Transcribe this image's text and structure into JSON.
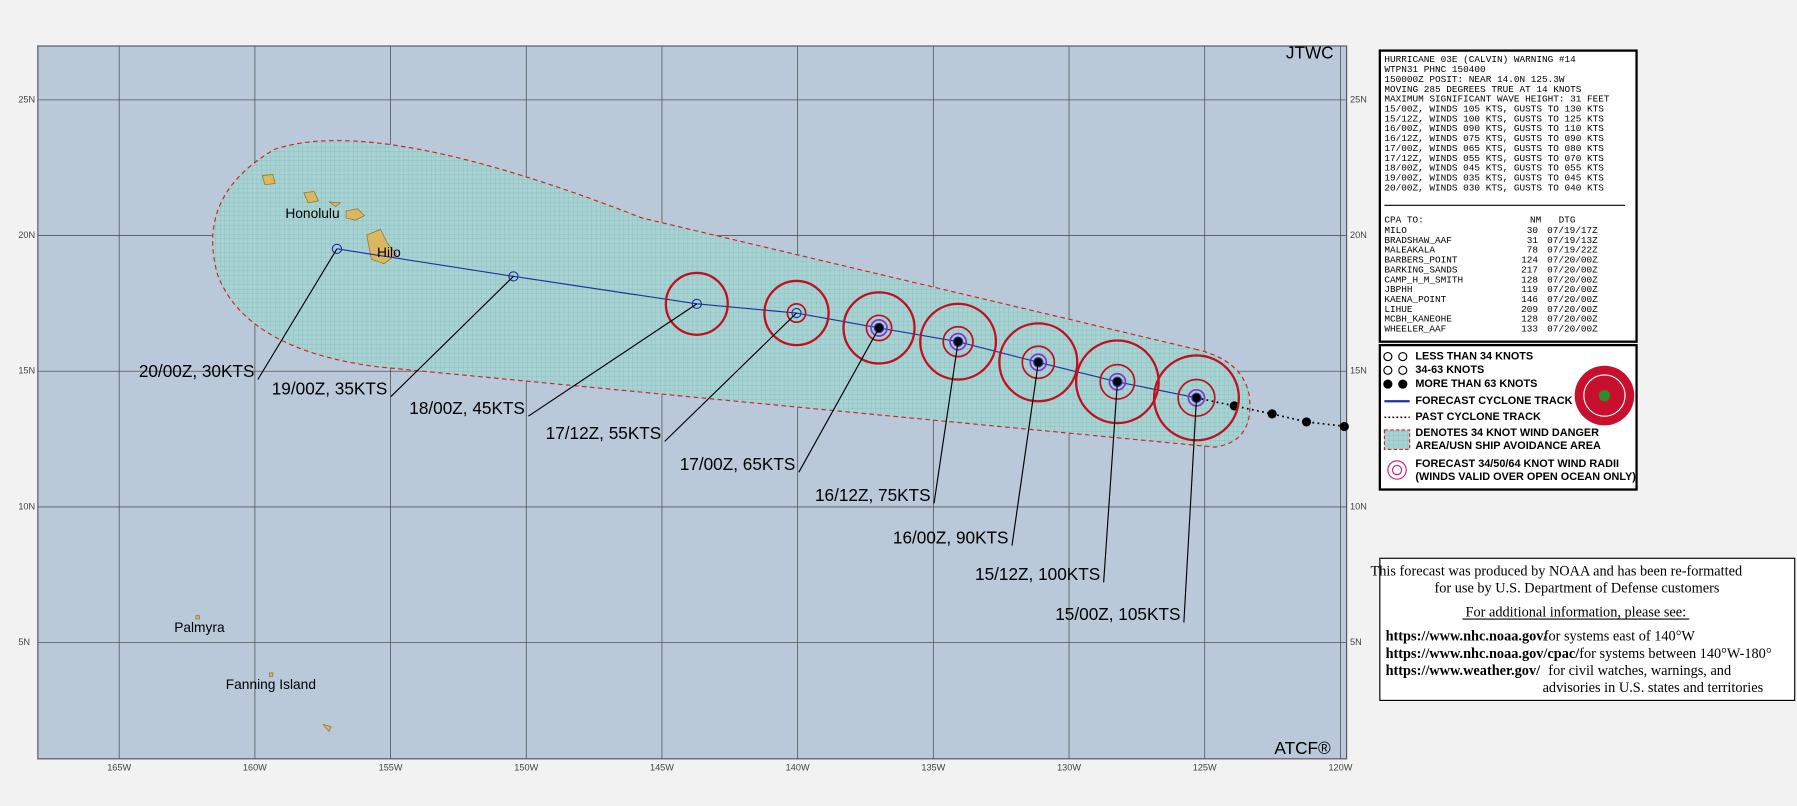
{
  "map": {
    "agency": "JTWC",
    "brand": "ATCF®",
    "lat_ticks": [
      "25N",
      "20N",
      "15N",
      "10N",
      "5N"
    ],
    "lon_ticks": [
      "165W",
      "160W",
      "155W",
      "150W",
      "145W",
      "140W",
      "135W",
      "130W",
      "125W",
      "120W"
    ],
    "places": [
      "Honolulu",
      "Hilo",
      "Palmyra",
      "Fanning Island"
    ],
    "forecast_labels": [
      "15/00Z, 105KTS",
      "15/12Z, 100KTS",
      "16/00Z, 90KTS",
      "16/12Z, 75KTS",
      "17/00Z, 65KTS",
      "17/12Z, 55KTS",
      "18/00Z, 45KTS",
      "19/00Z, 35KTS",
      "20/00Z, 30KTS"
    ]
  },
  "warning": {
    "lines": [
      "HURRICANE 03E (CALVIN) WARNING #14",
      "WTPN31 PHNC 150400",
      "150000Z POSIT: NEAR 14.0N 125.3W",
      "MOVING 285 DEGREES TRUE AT 14 KNOTS",
      "MAXIMUM SIGNIFICANT WAVE HEIGHT: 31 FEET",
      "15/00Z, WINDS 105 KTS, GUSTS TO 130 KTS",
      "15/12Z, WINDS 100 KTS, GUSTS TO 125 KTS",
      "16/00Z, WINDS 090 KTS, GUSTS TO 110 KTS",
      "16/12Z, WINDS 075 KTS, GUSTS TO 090 KTS",
      "17/00Z, WINDS 065 KTS, GUSTS TO 080 KTS",
      "17/12Z, WINDS 055 KTS, GUSTS TO 070 KTS",
      "18/00Z, WINDS 045 KTS, GUSTS TO 055 KTS",
      "19/00Z, WINDS 035 KTS, GUSTS TO 045 KTS",
      "20/00Z, WINDS 030 KTS, GUSTS TO 040 KTS"
    ]
  },
  "cpa": {
    "header": [
      "CPA TO:",
      "NM",
      "DTG"
    ],
    "rows": [
      [
        "MILO",
        30,
        "07/19/17Z"
      ],
      [
        "BRADSHAW_AAF",
        31,
        "07/19/13Z"
      ],
      [
        "MALEAKALA",
        78,
        "07/19/22Z"
      ],
      [
        "BARBERS_POINT",
        124,
        "07/20/00Z"
      ],
      [
        "BARKING_SANDS",
        217,
        "07/20/00Z"
      ],
      [
        "CAMP_H_M_SMITH",
        128,
        "07/20/00Z"
      ],
      [
        "JBPHH",
        119,
        "07/20/00Z"
      ],
      [
        "KAENA_POINT",
        146,
        "07/20/00Z"
      ],
      [
        "LIHUE",
        209,
        "07/20/00Z"
      ],
      [
        "MCBH_KANEOHE",
        128,
        "07/20/00Z"
      ],
      [
        "WHEELER_AAF",
        133,
        "07/20/00Z"
      ]
    ]
  },
  "legend": {
    "items": [
      "LESS THAN 34 KNOTS",
      "34-63 KNOTS",
      "MORE THAN 63 KNOTS",
      "FORECAST CYCLONE TRACK",
      "PAST CYCLONE TRACK",
      "DENOTES 34 KNOT WIND DANGER",
      "AREA/USN SHIP AVOIDANCE AREA",
      "FORECAST 34/50/64 KNOT WIND RADII",
      "(WINDS VALID OVER OPEN OCEAN ONLY)"
    ]
  },
  "info": {
    "lines": [
      "This forecast was produced by NOAA and has been re-formatted",
      "for use by U.S. Department of Defense customers",
      "For additional information, please see:"
    ],
    "links": [
      {
        "url": "https://www.nhc.noaa.gov/",
        "desc": "for systems east of 140°W"
      },
      {
        "url": "https://www.nhc.noaa.gov/cpac/",
        "desc": "for systems between 140°W-180°"
      },
      {
        "url": "https://www.weather.gov/",
        "desc": "for civil watches, warnings, and"
      }
    ],
    "tail": "advisories in U.S. states and territories"
  }
}
